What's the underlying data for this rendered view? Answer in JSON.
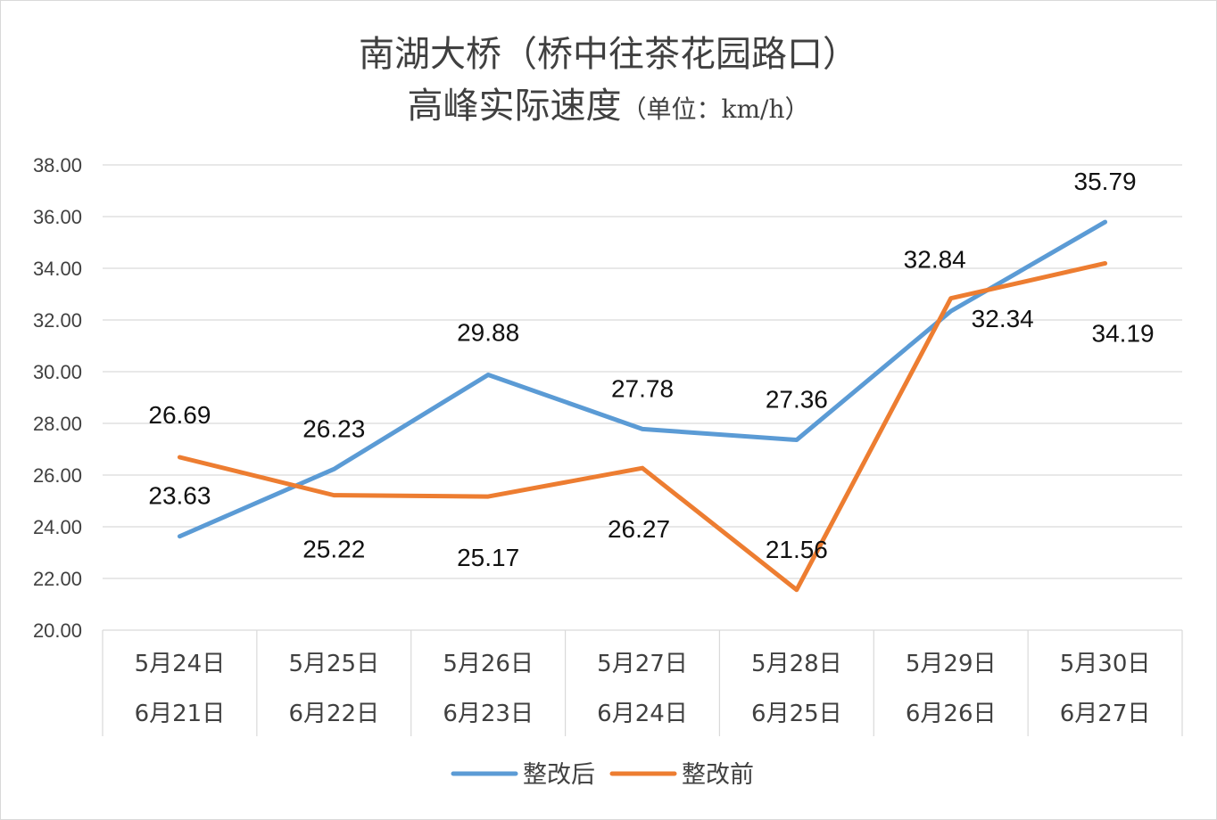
{
  "chart_data": {
    "type": "line",
    "title": "南湖大桥（桥中往茶花园路口）",
    "subtitle": "高峰实际速度",
    "subtitle_unit": "（单位：km/h）",
    "categories": [
      [
        "5月24日",
        "6月21日"
      ],
      [
        "5月25日",
        "6月22日"
      ],
      [
        "5月26日",
        "6月23日"
      ],
      [
        "5月27日",
        "6月24日"
      ],
      [
        "5月28日",
        "6月25日"
      ],
      [
        "5月29日",
        "6月26日"
      ],
      [
        "5月30日",
        "6月27日"
      ]
    ],
    "series": [
      {
        "name": "整改后",
        "color": "#5b9bd5",
        "values": [
          23.63,
          26.23,
          29.88,
          27.78,
          27.36,
          32.34,
          35.79
        ],
        "labels": [
          "23.63",
          "26.23",
          "29.88",
          "27.78",
          "27.36",
          "32.34",
          "35.79"
        ]
      },
      {
        "name": "整改前",
        "color": "#ed7d31",
        "values": [
          26.69,
          25.22,
          25.17,
          26.27,
          21.56,
          32.84,
          34.19
        ],
        "labels": [
          "26.69",
          "25.22",
          "25.17",
          "26.27",
          "21.56",
          "32.84",
          "34.19"
        ]
      }
    ],
    "ylim": [
      20,
      38
    ],
    "yticks": [
      "20.00",
      "22.00",
      "24.00",
      "26.00",
      "28.00",
      "30.00",
      "32.00",
      "34.00",
      "36.00",
      "38.00"
    ],
    "grid": true,
    "legend": "bottom"
  }
}
